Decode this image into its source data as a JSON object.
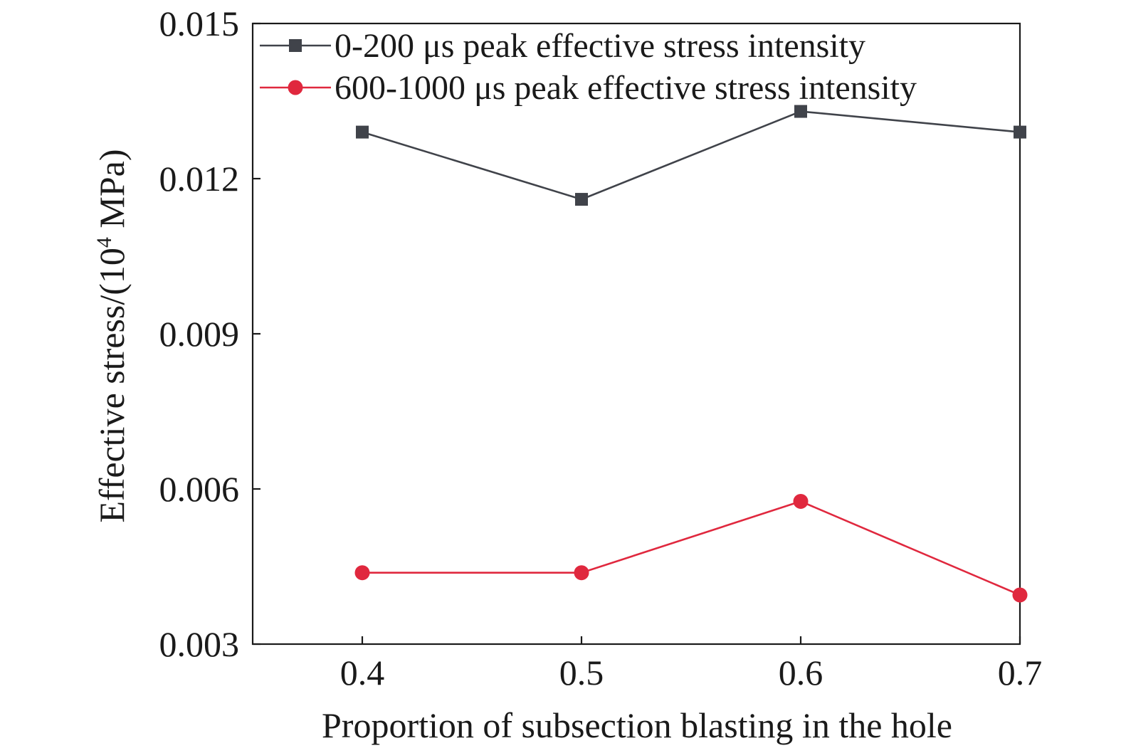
{
  "chart_data": {
    "type": "line",
    "xlabel": "Proportion of subsection blasting in the hole",
    "ylabel": "Effective stress/(10",
    "ylabel_sup": "4",
    "ylabel_tail": " MPa)",
    "x": [
      0.4,
      0.5,
      0.6,
      0.7
    ],
    "x_tick_labels": [
      "0.4",
      "0.5",
      "0.6",
      "0.7"
    ],
    "xlim": [
      0.35,
      0.7
    ],
    "ylim": [
      0.003,
      0.015
    ],
    "y_ticks": [
      0.003,
      0.006,
      0.009,
      0.012,
      0.015
    ],
    "y_tick_labels": [
      "0.003",
      "0.006",
      "0.009",
      "0.012",
      "0.015"
    ],
    "grid": false,
    "legend_position": "top-left",
    "series": [
      {
        "name": "0-200 μs peak effective stress intensity",
        "values": [
          0.0129,
          0.0116,
          0.0133,
          0.0129
        ],
        "color": "#40434a",
        "marker": "square"
      },
      {
        "name": "600-1000 μs peak effective stress intensity",
        "values": [
          0.00438,
          0.00438,
          0.00576,
          0.00395
        ],
        "color": "#e0283e",
        "marker": "circle"
      }
    ]
  }
}
